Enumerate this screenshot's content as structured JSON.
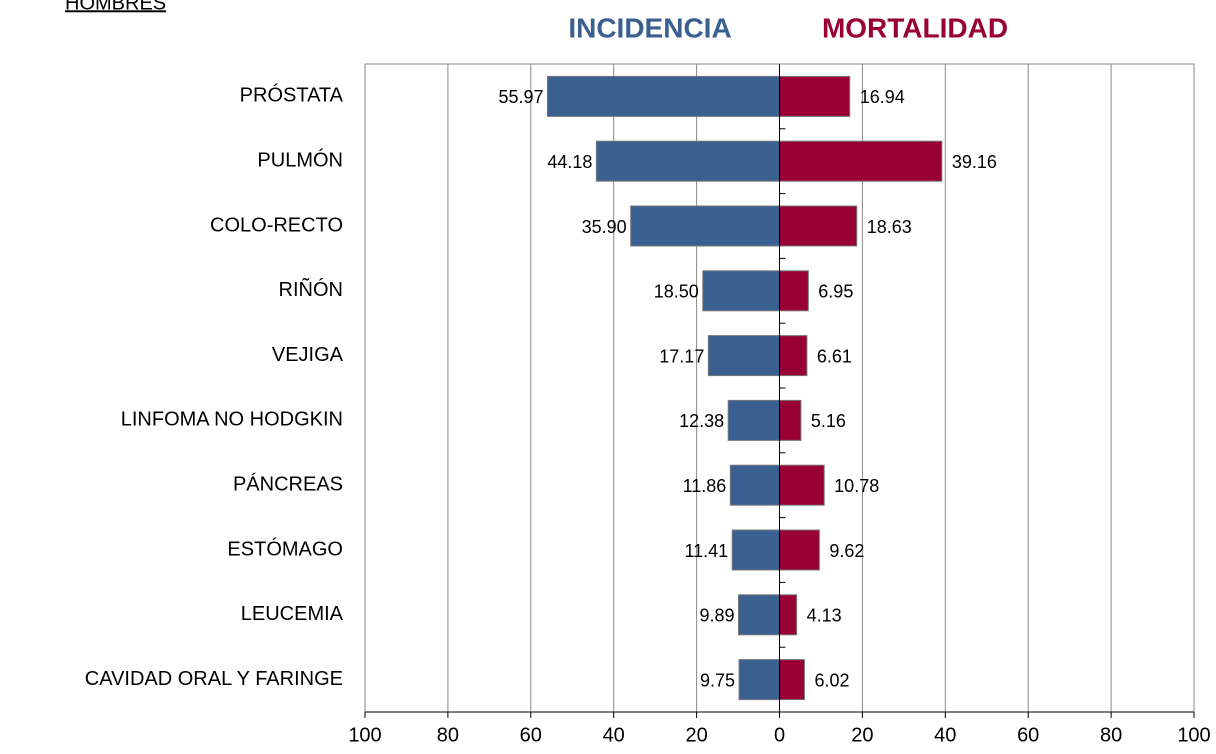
{
  "chart_data": {
    "type": "butterfly",
    "title": "HOMBRES",
    "categories": [
      "PRÓSTATA",
      "PULMÓN",
      "COLO-RECTO",
      "RIÑÓN",
      "VEJIGA",
      "LINFOMA NO HODGKIN",
      "PÁNCREAS",
      "ESTÓMAGO",
      "LEUCEMIA",
      "CAVIDAD ORAL Y FARINGE"
    ],
    "series": [
      {
        "name": "INCIDENCIA",
        "color": "#3a5f91",
        "values": [
          55.97,
          44.18,
          35.9,
          18.5,
          17.17,
          12.38,
          11.86,
          11.41,
          9.89,
          9.75
        ],
        "value_labels": [
          "55.97",
          "44.18",
          "35.90",
          "18.50",
          "17.17",
          "12.38",
          "11.86",
          "11.41",
          "9.89",
          "9.75"
        ]
      },
      {
        "name": "MORTALIDAD",
        "color": "#990033",
        "values": [
          16.94,
          39.16,
          18.63,
          6.95,
          6.61,
          5.16,
          10.78,
          9.62,
          4.13,
          6.02
        ],
        "value_labels": [
          "16.94",
          "39.16",
          "18.63",
          "6.95",
          "6.61",
          "5.16",
          "10.78",
          "9.62",
          "4.13",
          "6.02"
        ]
      }
    ],
    "xlim": [
      -100,
      100
    ],
    "xticks": [
      {
        "value": -100,
        "label": "100"
      },
      {
        "value": -80,
        "label": "80"
      },
      {
        "value": -60,
        "label": "60"
      },
      {
        "value": -40,
        "label": "40"
      },
      {
        "value": -20,
        "label": "20"
      },
      0,
      20,
      40,
      60,
      80,
      100
    ],
    "grid": true
  }
}
